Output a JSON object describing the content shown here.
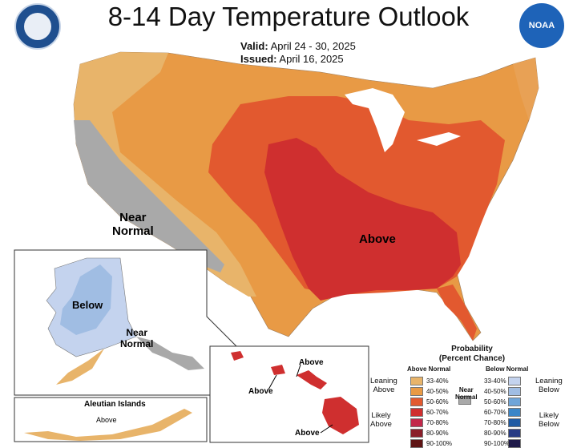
{
  "header": {
    "title": "8-14 Day Temperature Outlook",
    "valid_label": "Valid:",
    "valid_value": "April 24 - 30, 2025",
    "issued_label": "Issued:",
    "issued_value": "April 16, 2025",
    "left_logo_icon": "department-of-commerce-seal",
    "right_logo_icon": "noaa-logo",
    "right_logo_text": "NOAA"
  },
  "map_labels": {
    "conus_near_normal": "Near\nNormal",
    "conus_above": "Above",
    "alaska_below": "Below",
    "alaska_near_normal": "Near\nNormal",
    "hawaii_above_1": "Above",
    "hawaii_above_2": "Above",
    "hawaii_above_3": "Above",
    "aleutian_title": "Aleutian Islands",
    "aleutian_above": "Above"
  },
  "legend": {
    "title_line1": "Probability",
    "title_line2": "(Percent Chance)",
    "above_header": "Above Normal",
    "below_header": "Below Normal",
    "near_normal_label": "Near\nNormal",
    "leaning_above": "Leaning\nAbove",
    "likely_above": "Likely\nAbove",
    "leaning_below": "Leaning\nBelow",
    "likely_below": "Likely\nBelow",
    "above_bins": [
      {
        "label": "33-40%",
        "color": "#e8b46a"
      },
      {
        "label": "40-50%",
        "color": "#e89a45"
      },
      {
        "label": "50-60%",
        "color": "#e2592f"
      },
      {
        "label": "60-70%",
        "color": "#cf2f2f"
      },
      {
        "label": "70-80%",
        "color": "#c2284a"
      },
      {
        "label": "80-90%",
        "color": "#8a1f2a"
      },
      {
        "label": "90-100%",
        "color": "#5e1414"
      }
    ],
    "below_bins": [
      {
        "label": "33-40%",
        "color": "#c4d3ee"
      },
      {
        "label": "40-50%",
        "color": "#a0bde3"
      },
      {
        "label": "50-60%",
        "color": "#6fa5d9"
      },
      {
        "label": "60-70%",
        "color": "#3b86c8"
      },
      {
        "label": "70-80%",
        "color": "#1f5aa3"
      },
      {
        "label": "80-90%",
        "color": "#273b84"
      },
      {
        "label": "90-100%",
        "color": "#1f1a4a"
      }
    ],
    "near_normal_color": "#a9a9a9"
  }
}
